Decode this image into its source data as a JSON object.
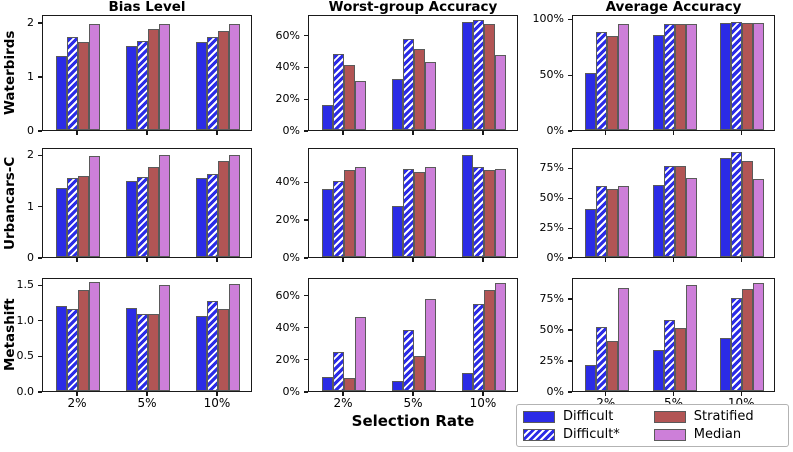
{
  "figure": {
    "xlabel": "Selection Rate",
    "row_labels": [
      "Waterbirds",
      "Urbancars-C",
      "Metashift"
    ],
    "col_titles": [
      "Bias Level",
      "Worst-group Accuracy",
      "Average Accuracy"
    ],
    "categories": [
      "2%",
      "5%",
      "10%"
    ]
  },
  "legend": {
    "entries": [
      {
        "label": "Difficult",
        "color": "#2b2be6",
        "hatch": false
      },
      {
        "label": "Difficult*",
        "color": "#2b2be6",
        "hatch": true
      },
      {
        "label": "Stratified",
        "color": "#b25555",
        "hatch": false
      },
      {
        "label": "Median",
        "color": "#cd7fd9",
        "hatch": false
      }
    ]
  },
  "style": {
    "bar_edge_color": "#5a5a5a",
    "axis_color": "#1a1a1a",
    "legend_border_color": "#b3b3b3"
  },
  "chart_data": [
    {
      "type": "bar",
      "row": "Waterbirds",
      "title": "Bias Level",
      "categories": [
        "2%",
        "5%",
        "10%"
      ],
      "ylim": [
        0,
        2.15
      ],
      "ytick_values": [
        0,
        1,
        2
      ],
      "ytick_labels": [
        "0",
        "1",
        "2"
      ],
      "series": [
        {
          "name": "Difficult",
          "values": [
            1.38,
            1.56,
            1.63
          ]
        },
        {
          "name": "Difficult*",
          "values": [
            1.73,
            1.65,
            1.73
          ]
        },
        {
          "name": "Stratified",
          "values": [
            1.64,
            1.88,
            1.84
          ]
        },
        {
          "name": "Median",
          "values": [
            1.96,
            1.97,
            1.97
          ]
        }
      ]
    },
    {
      "type": "bar",
      "row": "Waterbirds",
      "title": "Worst-group Accuracy",
      "categories": [
        "2%",
        "5%",
        "10%"
      ],
      "ylim": [
        0,
        73
      ],
      "ytick_values": [
        0,
        20,
        40,
        60
      ],
      "ytick_labels": [
        "0%",
        "20%",
        "40%",
        "60%"
      ],
      "series": [
        {
          "name": "Difficult",
          "values": [
            16,
            32,
            68
          ]
        },
        {
          "name": "Difficult*",
          "values": [
            48,
            57,
            69
          ]
        },
        {
          "name": "Stratified",
          "values": [
            41,
            51,
            67
          ]
        },
        {
          "name": "Median",
          "values": [
            31,
            43,
            47
          ]
        }
      ]
    },
    {
      "type": "bar",
      "row": "Waterbirds",
      "title": "Average Accuracy",
      "categories": [
        "2%",
        "5%",
        "10%"
      ],
      "ylim": [
        0,
        104
      ],
      "ytick_values": [
        0,
        50,
        100
      ],
      "ytick_labels": [
        "0%",
        "50%",
        "100%"
      ],
      "series": [
        {
          "name": "Difficult",
          "values": [
            51,
            85,
            96
          ]
        },
        {
          "name": "Difficult*",
          "values": [
            88,
            95,
            97
          ]
        },
        {
          "name": "Stratified",
          "values": [
            84,
            95,
            96
          ]
        },
        {
          "name": "Median",
          "values": [
            95,
            95,
            96
          ]
        }
      ]
    },
    {
      "type": "bar",
      "row": "Urbancars-C",
      "title": "Bias Level",
      "categories": [
        "2%",
        "5%",
        "10%"
      ],
      "ylim": [
        0,
        2.14
      ],
      "ytick_values": [
        0,
        1,
        2
      ],
      "ytick_labels": [
        "0",
        "1",
        "2"
      ],
      "series": [
        {
          "name": "Difficult",
          "values": [
            1.35,
            1.48,
            1.54
          ]
        },
        {
          "name": "Difficult*",
          "values": [
            1.53,
            1.56,
            1.62
          ]
        },
        {
          "name": "Stratified",
          "values": [
            1.58,
            1.76,
            1.87
          ]
        },
        {
          "name": "Median",
          "values": [
            1.97,
            1.99,
            1.98
          ]
        }
      ]
    },
    {
      "type": "bar",
      "row": "Urbancars-C",
      "title": "Worst-group Accuracy",
      "categories": [
        "2%",
        "5%",
        "10%"
      ],
      "ylim": [
        0,
        58
      ],
      "ytick_values": [
        0,
        20,
        40
      ],
      "ytick_labels": [
        "0%",
        "20%",
        "40%"
      ],
      "series": [
        {
          "name": "Difficult",
          "values": [
            36,
            27,
            54
          ]
        },
        {
          "name": "Difficult*",
          "values": [
            40,
            46.5,
            47.5
          ]
        },
        {
          "name": "Stratified",
          "values": [
            46,
            45,
            46
          ]
        },
        {
          "name": "Median",
          "values": [
            47.5,
            47.5,
            46.5
          ]
        }
      ]
    },
    {
      "type": "bar",
      "row": "Urbancars-C",
      "title": "Average Accuracy",
      "categories": [
        "2%",
        "5%",
        "10%"
      ],
      "ylim": [
        0,
        92
      ],
      "ytick_values": [
        0,
        25,
        50,
        75
      ],
      "ytick_labels": [
        "0%",
        "25%",
        "50%",
        "75%"
      ],
      "series": [
        {
          "name": "Difficult",
          "values": [
            40,
            60,
            83
          ]
        },
        {
          "name": "Difficult*",
          "values": [
            59,
            76,
            88
          ]
        },
        {
          "name": "Stratified",
          "values": [
            57,
            76,
            80
          ]
        },
        {
          "name": "Median",
          "values": [
            59,
            66.5,
            65.5
          ]
        }
      ]
    },
    {
      "type": "bar",
      "row": "Metashift",
      "title": "Bias Level",
      "categories": [
        "2%",
        "5%",
        "10%"
      ],
      "ylim": [
        0,
        1.6
      ],
      "ytick_values": [
        0,
        0.5,
        1.0,
        1.5
      ],
      "ytick_labels": [
        "0.0",
        "0.5",
        "1.0",
        "1.5"
      ],
      "series": [
        {
          "name": "Difficult",
          "values": [
            1.2,
            1.17,
            1.05
          ]
        },
        {
          "name": "Difficult*",
          "values": [
            1.15,
            1.08,
            1.26
          ]
        },
        {
          "name": "Stratified",
          "values": [
            1.42,
            1.08,
            1.15
          ]
        },
        {
          "name": "Median",
          "values": [
            1.53,
            1.49,
            1.5
          ]
        }
      ]
    },
    {
      "type": "bar",
      "row": "Metashift",
      "title": "Worst-group Accuracy",
      "categories": [
        "2%",
        "5%",
        "10%"
      ],
      "ylim": [
        0,
        71
      ],
      "ytick_values": [
        0,
        20,
        40,
        60
      ],
      "ytick_labels": [
        "0%",
        "20%",
        "40%",
        "60%"
      ],
      "series": [
        {
          "name": "Difficult",
          "values": [
            9,
            6.5,
            11.5
          ]
        },
        {
          "name": "Difficult*",
          "values": [
            24.5,
            38,
            54.5
          ]
        },
        {
          "name": "Stratified",
          "values": [
            8,
            21.5,
            63
          ]
        },
        {
          "name": "Median",
          "values": [
            46,
            57,
            67.5
          ]
        }
      ]
    },
    {
      "type": "bar",
      "row": "Metashift",
      "title": "Average Accuracy",
      "categories": [
        "2%",
        "5%",
        "10%"
      ],
      "ylim": [
        0,
        92
      ],
      "ytick_values": [
        0,
        25,
        50,
        75
      ],
      "ytick_labels": [
        "0%",
        "25%",
        "50%",
        "75%"
      ],
      "series": [
        {
          "name": "Difficult",
          "values": [
            21,
            33,
            43
          ]
        },
        {
          "name": "Difficult*",
          "values": [
            52,
            57.5,
            75
          ]
        },
        {
          "name": "Stratified",
          "values": [
            40,
            51,
            82.5
          ]
        },
        {
          "name": "Median",
          "values": [
            83,
            85.5,
            87.5
          ]
        }
      ]
    }
  ]
}
